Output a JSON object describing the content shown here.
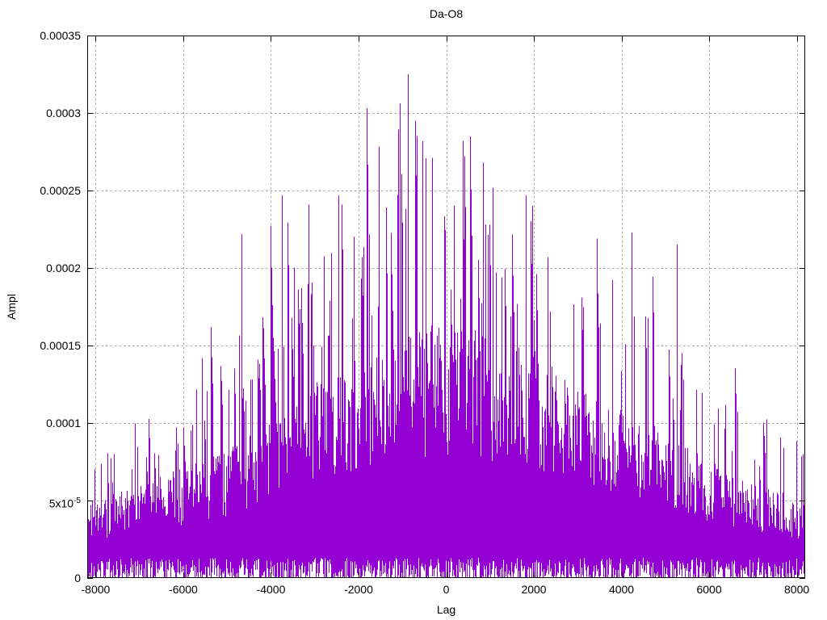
{
  "chart_data": {
    "type": "line",
    "title": "Da-O8",
    "xlabel": "Lag",
    "ylabel": "Ampl",
    "xlim": [
      -8192,
      8192
    ],
    "ylim": [
      0,
      0.00035
    ],
    "x_ticks": [
      {
        "value": -8000,
        "label": "-8000"
      },
      {
        "value": -6000,
        "label": "-6000"
      },
      {
        "value": -4000,
        "label": "-4000"
      },
      {
        "value": -2000,
        "label": "-2000"
      },
      {
        "value": 0,
        "label": "0"
      },
      {
        "value": 2000,
        "label": "2000"
      },
      {
        "value": 4000,
        "label": "4000"
      },
      {
        "value": 6000,
        "label": "6000"
      },
      {
        "value": 8000,
        "label": "8000"
      }
    ],
    "y_ticks": [
      {
        "value": 0,
        "label": "0"
      },
      {
        "value": 5e-05,
        "label": "5x10^-5"
      },
      {
        "value": 0.0001,
        "label": "0.0001"
      },
      {
        "value": 0.00015,
        "label": "0.00015"
      },
      {
        "value": 0.0002,
        "label": "0.0002"
      },
      {
        "value": 0.00025,
        "label": "0.00025"
      },
      {
        "value": 0.0003,
        "label": "0.0003"
      },
      {
        "value": 0.00035,
        "label": "0.00035"
      }
    ],
    "grid": {
      "visible": true,
      "style": "dashed",
      "color": "#a8a8a8"
    },
    "series": {
      "color": "#9400d3",
      "style": "dense-impulses"
    },
    "envelope": {
      "lags": [
        -8000,
        -7000,
        -6000,
        -5000,
        -4000,
        -3000,
        -2000,
        -1000,
        0,
        1000,
        2000,
        3000,
        4000,
        5000,
        6000,
        7000,
        8000
      ],
      "peak_ampl": [
        9e-05,
        0.000105,
        0.000125,
        0.00019,
        0.00023,
        0.00024,
        0.00026,
        0.00031,
        0.000285,
        0.000265,
        0.00025,
        0.00023,
        0.000225,
        0.000205,
        0.00015,
        0.00013,
        9.5e-05
      ],
      "dense_top_ampl": [
        4.8e-05,
        5.8e-05,
        6.8e-05,
        8e-05,
        0.0001,
        0.00012,
        0.000135,
        0.00015,
        0.000158,
        0.00015,
        0.00014,
        0.000125,
        0.000105,
        9e-05,
        7.2e-05,
        6e-05,
        5e-05
      ],
      "noise_floor_max": 1.3e-05
    },
    "notable_peaks": [
      [
        -867,
        0.000325
      ],
      [
        -1815,
        0.000303
      ],
      [
        544,
        0.000285
      ],
      [
        378,
        0.000282
      ],
      [
        -322,
        0.000271
      ],
      [
        840,
        0.000268
      ],
      [
        -3740,
        0.000247
      ],
      [
        1830,
        0.000247
      ],
      [
        -3135,
        0.000241
      ],
      [
        -2380,
        0.000241
      ],
      [
        1980,
        0.00024
      ],
      [
        4230,
        0.000223
      ],
      [
        -4660,
        0.000222
      ],
      [
        3440,
        0.000219
      ],
      [
        5280,
        0.000215
      ],
      [
        -5360,
        0.000162
      ]
    ],
    "render_seed": 77
  }
}
